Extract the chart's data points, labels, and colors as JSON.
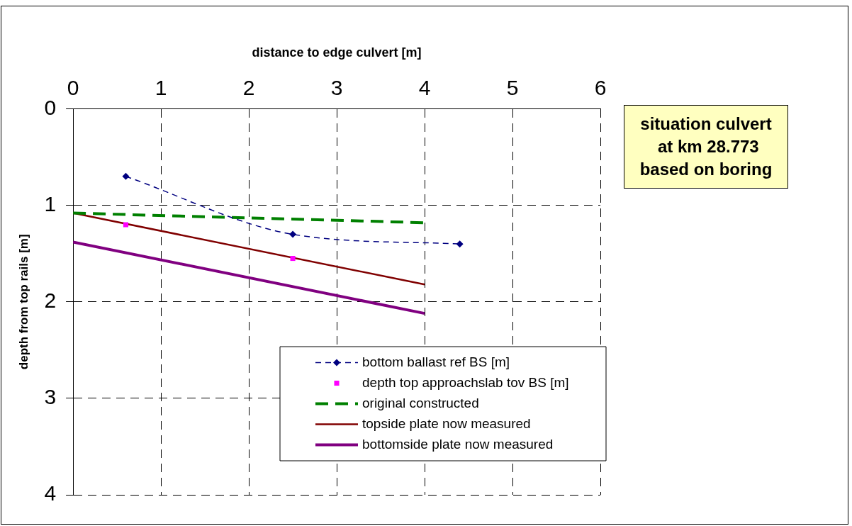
{
  "chart_data": {
    "type": "line",
    "xlabel": "distance to edge culvert [m]",
    "ylabel": "depth from top rails [m]",
    "xlim": [
      0,
      6
    ],
    "xticks": [
      0,
      1,
      2,
      3,
      4,
      5,
      6
    ],
    "ylim": [
      4,
      0
    ],
    "yticks": [
      0,
      1,
      2,
      3,
      4
    ],
    "grid": true,
    "legend": "bottom right",
    "annotations": [
      "situation culvert\n at km 28.773\nbased on boring"
    ],
    "series": [
      {
        "name": "bottom ballast ref BS [m]",
        "type": "line",
        "color": "#000080",
        "marker": "diamond",
        "line_style": "dashed",
        "x": [
          0.6,
          2.5,
          4.4
        ],
        "values": [
          0.7,
          1.3,
          1.4
        ]
      },
      {
        "name": "depth top approachslab tov BS [m]",
        "type": "scatter",
        "color": "#ff00ff",
        "marker": "square",
        "x": [
          0.6,
          2.5
        ],
        "values": [
          1.2,
          1.55
        ]
      },
      {
        "name": "original constructed",
        "type": "line",
        "color": "#008000",
        "marker": "none",
        "line_style": "dashed",
        "x": [
          0,
          4
        ],
        "values": [
          1.08,
          1.18
        ]
      },
      {
        "name": "topside plate now measured",
        "type": "line",
        "color": "#800000",
        "marker": "none",
        "line_style": "solid",
        "x": [
          0,
          4
        ],
        "values": [
          1.08,
          1.82
        ]
      },
      {
        "name": "bottomside plate now measured",
        "type": "line",
        "color": "#800080",
        "marker": "none",
        "line_style": "solid",
        "x": [
          0,
          4
        ],
        "values": [
          1.38,
          2.12
        ]
      }
    ]
  }
}
